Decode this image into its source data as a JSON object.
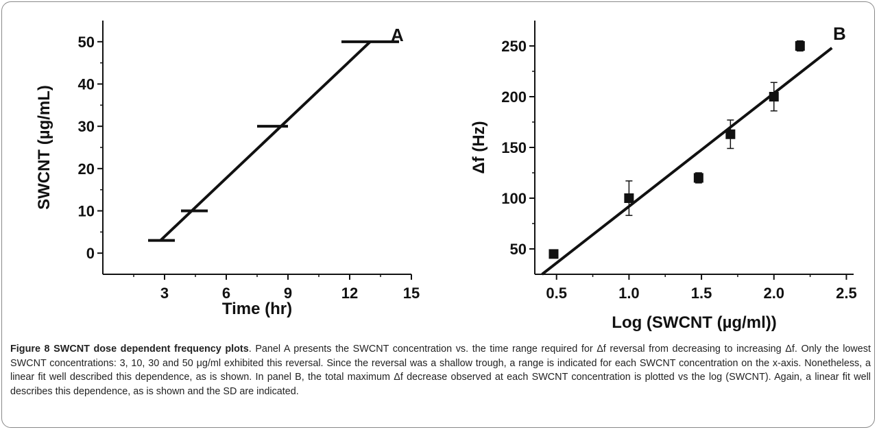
{
  "figure": {
    "caption_title": "Figure 8 SWCNT dose dependent frequency plots",
    "caption_text": ". Panel A presents the SWCNT concentration vs. the time range required for Δf reversal from decreasing to increasing Δf. Only the lowest SWCNT concentrations: 3, 10, 30 and 50 μg/ml exhibited this reversal. Since the reversal was a shallow trough, a range is indicated for each SWCNT concentration on the x-axis. Nonetheless, a linear fit well described this dependence, as is shown. In panel B, the total maximum Δf decrease observed at each SWCNT concentration is plotted vs the log (SWCNT). Again, a linear fit well describes this dependence, as is shown and the SD are indicated."
  },
  "chart_data": [
    {
      "type": "line",
      "panel_label": "A",
      "xlabel": "Time (hr)",
      "ylabel": "SWCNT (µg/mL)",
      "xlim": [
        0,
        15
      ],
      "ylim": [
        -5,
        55
      ],
      "xticks": [
        3,
        6,
        9,
        12,
        15
      ],
      "yticks": [
        0,
        10,
        20,
        30,
        40,
        50
      ],
      "grid": false,
      "ranges": [
        {
          "y": 3,
          "x_start": 2.2,
          "x_end": 3.5
        },
        {
          "y": 10,
          "x_start": 3.8,
          "x_end": 5.1
        },
        {
          "y": 30,
          "x_start": 7.5,
          "x_end": 9.0
        },
        {
          "y": 50,
          "x_start": 11.6,
          "x_end": 14.4
        }
      ],
      "fit_line": {
        "x": [
          2.8,
          13.0
        ],
        "y": [
          3,
          50
        ]
      }
    },
    {
      "type": "scatter",
      "panel_label": "B",
      "xlabel": "Log (SWCNT (µg/ml))",
      "ylabel": "Δf (Hz)",
      "xlim": [
        0.35,
        2.55
      ],
      "ylim": [
        25,
        275
      ],
      "xticks": [
        0.5,
        1.0,
        1.5,
        2.0,
        2.5
      ],
      "xtick_labels": [
        "0.5",
        "1.0",
        "1.5",
        "2.0",
        "2.5"
      ],
      "yticks": [
        50,
        100,
        150,
        200,
        250
      ],
      "grid": false,
      "points": [
        {
          "x": 0.48,
          "y": 45,
          "err": 4
        },
        {
          "x": 1.0,
          "y": 100,
          "err": 17
        },
        {
          "x": 1.48,
          "y": 120,
          "err": 5
        },
        {
          "x": 1.7,
          "y": 163,
          "err": 14
        },
        {
          "x": 2.0,
          "y": 200,
          "err": 14
        },
        {
          "x": 2.18,
          "y": 250,
          "err": 5
        }
      ],
      "fit_line": {
        "x": [
          0.4,
          2.4
        ],
        "y": [
          25,
          248
        ]
      }
    }
  ]
}
